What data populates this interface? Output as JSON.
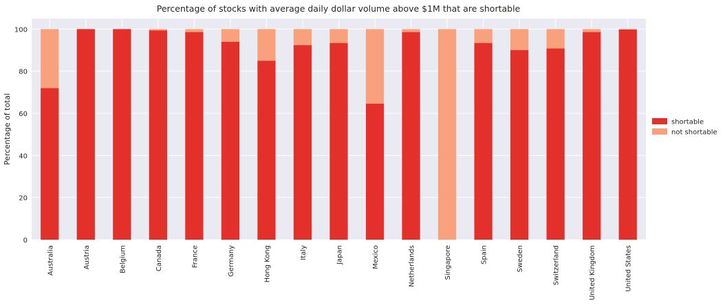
{
  "chart_data": {
    "type": "bar",
    "stacked": true,
    "title": "Percentage of stocks with average daily dollar volume above $1M that are shortable",
    "xlabel": "",
    "ylabel": "Percentage of total",
    "ylim": [
      0,
      105
    ],
    "yticks": [
      0,
      20,
      40,
      60,
      80,
      100
    ],
    "grid": true,
    "legend_position": "right",
    "categories": [
      "Australia",
      "Austria",
      "Belgium",
      "Canada",
      "France",
      "Germany",
      "Hong Kong",
      "Italy",
      "Japan",
      "Mexico",
      "Netherlands",
      "Singapore",
      "Spain",
      "Sweden",
      "Switzerland",
      "United Kingdom",
      "United States"
    ],
    "series": [
      {
        "name": "shortable",
        "color": "#e3302a",
        "values": [
          72,
          100,
          100,
          99.4,
          98.6,
          94,
          85,
          92.4,
          93.4,
          64.6,
          98.6,
          0,
          93.4,
          90,
          90.8,
          98.6,
          99.8
        ]
      },
      {
        "name": "not shortable",
        "color": "#f9a07d",
        "values": [
          28,
          0,
          0,
          0.6,
          1.4,
          6,
          15,
          7.6,
          6.6,
          35.4,
          1.4,
          100,
          6.6,
          10,
          9.2,
          1.4,
          0.2
        ]
      }
    ],
    "plot_background": "#eaeaf2",
    "grid_color": "#ffffff"
  }
}
